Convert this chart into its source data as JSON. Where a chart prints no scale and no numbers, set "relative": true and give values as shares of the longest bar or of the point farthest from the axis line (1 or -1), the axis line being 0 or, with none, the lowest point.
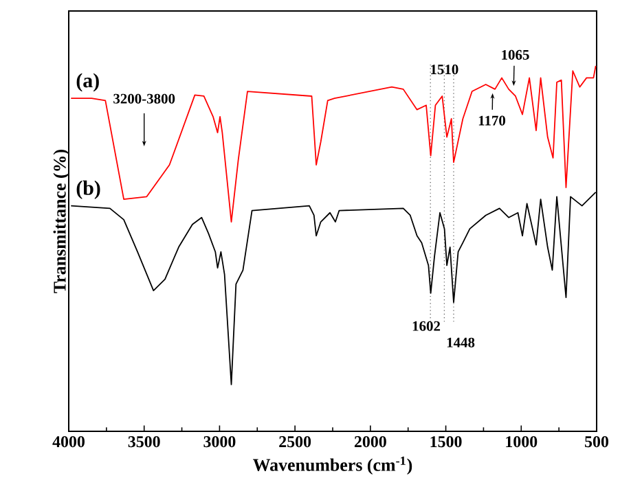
{
  "chart_data": {
    "type": "line",
    "xlabel": "Wavenumbers (cm$^{-1}$)",
    "ylabel": "Transmittance (%)",
    "relative": true,
    "xlim": [
      4000,
      500
    ],
    "xticks": [
      4000,
      3500,
      3000,
      2500,
      2000,
      1500,
      1000,
      500
    ],
    "legend": false,
    "grid": false,
    "marker": "none",
    "line_style": "solid",
    "ref_lines": [
      {
        "axis": "x",
        "value": 1602,
        "line_style": "dotted"
      },
      {
        "axis": "x",
        "value": 1510,
        "line_style": "dotted"
      },
      {
        "axis": "x",
        "value": 1448,
        "line_style": "dotted"
      }
    ],
    "annotations": [
      {
        "text": "3200-3800",
        "x": 3500,
        "y": 0.78
      },
      {
        "text": "1510",
        "x": 1510,
        "y": 0.93
      },
      {
        "text": "1065",
        "x": 1050,
        "y": 0.945
      },
      {
        "text": "1170",
        "x": 1190,
        "y": 0.925
      },
      {
        "text": "1602",
        "x": 1602,
        "y": 0.378
      },
      {
        "text": "1448",
        "x": 1448,
        "y": 0.353
      }
    ],
    "series": [
      {
        "name": "(a)",
        "color": "#ff0000",
        "x": [
          3985,
          3848,
          3757,
          3635,
          3483,
          3332,
          3164,
          3104,
          3043,
          3013,
          2997,
          2982,
          2922,
          2876,
          2815,
          2389,
          2359,
          2329,
          2283,
          2238,
          1858,
          1782,
          1691,
          1630,
          1600,
          1569,
          1524,
          1493,
          1463,
          1448,
          1387,
          1326,
          1235,
          1174,
          1129,
          1083,
          1038,
          992,
          946,
          901,
          871,
          825,
          789,
          764,
          734,
          703,
          658,
          612,
          567,
          521,
          506
        ],
        "values": [
          0.911,
          0.911,
          0.905,
          0.635,
          0.642,
          0.729,
          0.92,
          0.917,
          0.861,
          0.817,
          0.861,
          0.817,
          0.573,
          0.742,
          0.93,
          0.917,
          0.729,
          0.792,
          0.905,
          0.911,
          0.942,
          0.936,
          0.88,
          0.892,
          0.754,
          0.892,
          0.917,
          0.805,
          0.855,
          0.736,
          0.855,
          0.93,
          0.949,
          0.936,
          0.967,
          0.936,
          0.917,
          0.867,
          0.967,
          0.823,
          0.967,
          0.805,
          0.748,
          0.955,
          0.961,
          0.667,
          0.986,
          0.942,
          0.967,
          0.967,
          1
        ]
      },
      {
        "name": "(b)",
        "color": "#000000",
        "x": [
          3985,
          3727,
          3635,
          3544,
          3438,
          3362,
          3271,
          3180,
          3119,
          3073,
          3028,
          3013,
          2991,
          2967,
          2922,
          2891,
          2845,
          2785,
          2405,
          2374,
          2359,
          2329,
          2268,
          2232,
          2207,
          1782,
          1736,
          1691,
          1660,
          1615,
          1600,
          1575,
          1539,
          1509,
          1493,
          1472,
          1448,
          1418,
          1387,
          1341,
          1235,
          1144,
          1083,
          1022,
          992,
          962,
          901,
          871,
          825,
          794,
          764,
          703,
          673,
          597,
          536,
          506
        ],
        "values": [
          0.617,
          0.61,
          0.579,
          0.491,
          0.385,
          0.416,
          0.504,
          0.566,
          0.585,
          0.541,
          0.491,
          0.447,
          0.491,
          0.429,
          0.128,
          0.403,
          0.441,
          0.604,
          0.617,
          0.591,
          0.535,
          0.573,
          0.598,
          0.573,
          0.604,
          0.61,
          0.591,
          0.535,
          0.516,
          0.454,
          0.378,
          0.479,
          0.598,
          0.554,
          0.454,
          0.504,
          0.353,
          0.491,
          0.516,
          0.554,
          0.591,
          0.61,
          0.585,
          0.598,
          0.535,
          0.623,
          0.51,
          0.635,
          0.504,
          0.441,
          0.642,
          0.366,
          0.642,
          0.617,
          0.642,
          0.654
        ]
      }
    ]
  }
}
